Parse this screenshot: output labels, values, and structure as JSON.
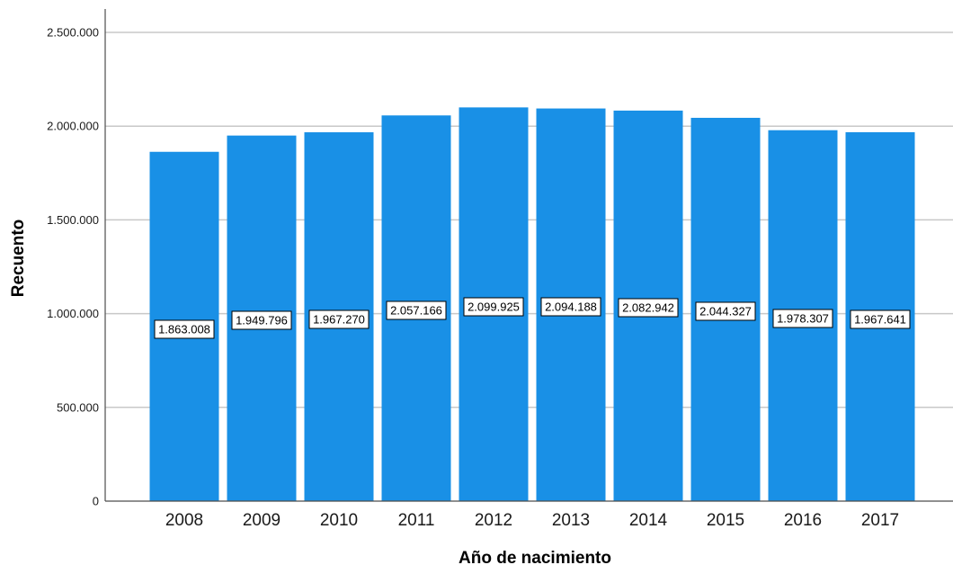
{
  "chart_data": {
    "type": "bar",
    "categories": [
      "2008",
      "2009",
      "2010",
      "2011",
      "2012",
      "2013",
      "2014",
      "2015",
      "2016",
      "2017"
    ],
    "values": [
      1863008,
      1949796,
      1967270,
      2057166,
      2099925,
      2094188,
      2082942,
      2044327,
      1978307,
      1967641
    ],
    "data_labels": [
      "1.863.008",
      "1.949.796",
      "1.967.270",
      "2.057.166",
      "2.099.925",
      "2.094.188",
      "2.082.942",
      "2.044.327",
      "1.978.307",
      "1.967.641"
    ],
    "title": "",
    "xlabel": "Año de nacimiento",
    "ylabel": "Recuento",
    "ylim": [
      0,
      2500000
    ],
    "yticks": [
      0,
      500000,
      1000000,
      1500000,
      2000000,
      2500000
    ],
    "ytick_labels": [
      "0",
      "500.000",
      "1.000.000",
      "1.500.000",
      "2.000.000",
      "2.500.000"
    ],
    "grid": "horizontal",
    "legend": "none",
    "colors": {
      "bar": "#1990e6",
      "grid": "#c8c8c8",
      "axis": "#4d4d4d"
    }
  }
}
